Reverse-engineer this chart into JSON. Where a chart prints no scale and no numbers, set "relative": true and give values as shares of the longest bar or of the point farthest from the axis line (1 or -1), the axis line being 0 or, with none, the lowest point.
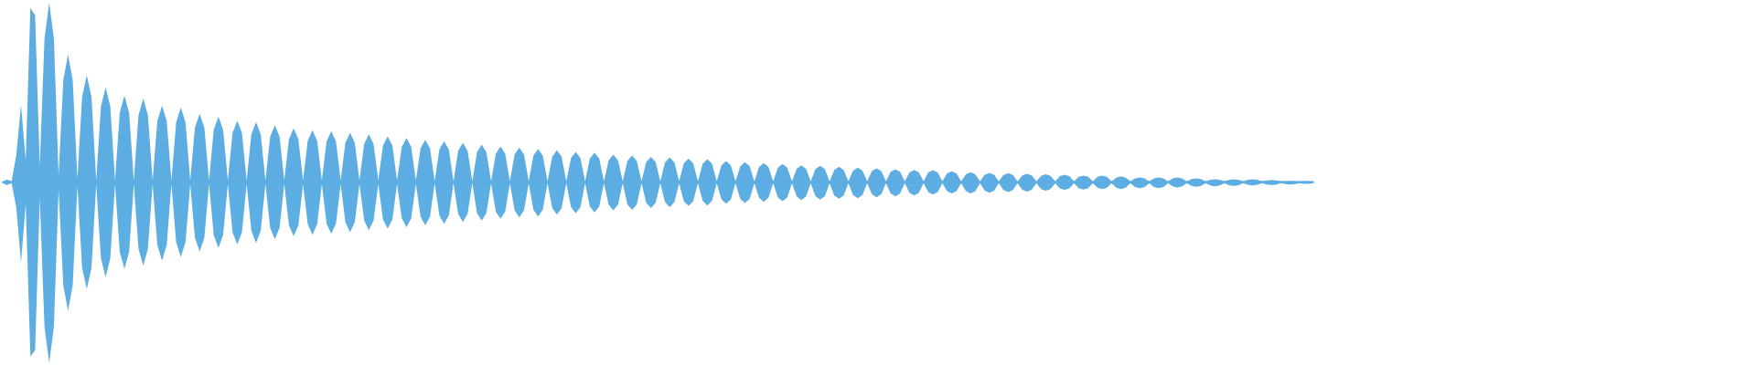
{
  "chart_data": {
    "type": "area",
    "relative": true,
    "categories": [
      null,
      null,
      null,
      null,
      null,
      null,
      null,
      null,
      null,
      null,
      null,
      null,
      null,
      null,
      null,
      null,
      null,
      null,
      null,
      null,
      null,
      null,
      null,
      null,
      null,
      null,
      null,
      null,
      null,
      null,
      null,
      null,
      null,
      null,
      null,
      null,
      null,
      null,
      null,
      null,
      null,
      null,
      null,
      null,
      null,
      null,
      null,
      null,
      null,
      null,
      null,
      null,
      null,
      null,
      null,
      null,
      null,
      null,
      null,
      null,
      null,
      null,
      null,
      null,
      null,
      null,
      null,
      null,
      null,
      null,
      null,
      null,
      null,
      null,
      null,
      null,
      null,
      null,
      null,
      null,
      null,
      null,
      null,
      null,
      null,
      null,
      null,
      null,
      null,
      null,
      null,
      null,
      null,
      null,
      null,
      null,
      null,
      null,
      null,
      null,
      null,
      null,
      null,
      null,
      null,
      null,
      null,
      null,
      null,
      null,
      null,
      null,
      null,
      null,
      null,
      null,
      null,
      null,
      null,
      null,
      null,
      null,
      null,
      null,
      null,
      null,
      null,
      null,
      null,
      null,
      null,
      null,
      null,
      null,
      null,
      null,
      null,
      null,
      null,
      null,
      null,
      null,
      null,
      null,
      null,
      null,
      null,
      null,
      null,
      null,
      null,
      null,
      null,
      null,
      null,
      null,
      null,
      null,
      null,
      null,
      null,
      null,
      null,
      null,
      null,
      null,
      null,
      null,
      null,
      null,
      null,
      null,
      null,
      null,
      null,
      null,
      null,
      null,
      null,
      null,
      null,
      null,
      null,
      null,
      null,
      null,
      null,
      null,
      null,
      null,
      null,
      null,
      null,
      null,
      null,
      null,
      null,
      null,
      null,
      null,
      null,
      null,
      null,
      null,
      null,
      null,
      null,
      null,
      null,
      null,
      null,
      null,
      null,
      null,
      null,
      null,
      null,
      null,
      null,
      null,
      null,
      null,
      null,
      null,
      null,
      null,
      null,
      null,
      null,
      null,
      null,
      null,
      null,
      null,
      null,
      null,
      null,
      null,
      null,
      null,
      null,
      null,
      null,
      null,
      null,
      null,
      null,
      null,
      null,
      null,
      null,
      null,
      null,
      null,
      null,
      null,
      null,
      null,
      null,
      null,
      null,
      null,
      null,
      null,
      null,
      null,
      null,
      null,
      null,
      null,
      null,
      null,
      null,
      null,
      null,
      null,
      null,
      null,
      null,
      null
    ],
    "series": [
      {
        "color": "#5dade2",
        "values": [
          0.003,
          0.015,
          0.005,
          0.15,
          0.429,
          0.12,
          0.965,
          0.924,
          0.09,
          0.796,
          0.995,
          0.796,
          0.04,
          0.566,
          0.707,
          0.566,
          0.02,
          0.473,
          0.591,
          0.473,
          0.01,
          0.42,
          0.525,
          0.42,
          0.01,
          0.384,
          0.48,
          0.384,
          0.01,
          0.372,
          0.465,
          0.372,
          0.01,
          0.339,
          0.424,
          0.339,
          0.01,
          0.331,
          0.414,
          0.331,
          0.01,
          0.303,
          0.379,
          0.303,
          0.01,
          0.291,
          0.364,
          0.291,
          0.01,
          0.273,
          0.341,
          0.273,
          0.01,
          0.266,
          0.333,
          0.266,
          0.01,
          0.253,
          0.316,
          0.253,
          0.01,
          0.239,
          0.299,
          0.239,
          0.01,
          0.23,
          0.288,
          0.23,
          0.01,
          0.226,
          0.283,
          0.226,
          0.01,
          0.219,
          0.274,
          0.219,
          0.01,
          0.213,
          0.266,
          0.213,
          0.01,
          0.203,
          0.254,
          0.203,
          0.01,
          0.196,
          0.245,
          0.196,
          0.01,
          0.188,
          0.235,
          0.188,
          0.005,
          0.182,
          0.227,
          0.182,
          0.005,
          0.175,
          0.219,
          0.175,
          0.005,
          0.167,
          0.209,
          0.167,
          0.005,
          0.158,
          0.198,
          0.158,
          0.005,
          0.154,
          0.192,
          0.154,
          0.005,
          0.148,
          0.185,
          0.148,
          0.005,
          0.142,
          0.178,
          0.142,
          0.005,
          0.134,
          0.168,
          0.134,
          0.005,
          0.132,
          0.165,
          0.132,
          0.005,
          0.122,
          0.153,
          0.122,
          0.005,
          0.118,
          0.148,
          0.118,
          0.005,
          0.113,
          0.141,
          0.113,
          0.005,
          0.11,
          0.138,
          0.11,
          0.005,
          0.105,
          0.131,
          0.105,
          0.005,
          0.102,
          0.128,
          0.102,
          0.005,
          0.094,
          0.118,
          0.094,
          0.005,
          0.089,
          0.111,
          0.089,
          0.005,
          0.085,
          0.106,
          0.085,
          0.005,
          0.081,
          0.101,
          0.081,
          0.005,
          0.075,
          0.094,
          0.075,
          0.005,
          0.073,
          0.091,
          0.073,
          0.005,
          0.069,
          0.086,
          0.069,
          0.005,
          0.065,
          0.081,
          0.065,
          0.005,
          0.062,
          0.077,
          0.062,
          0.005,
          0.058,
          0.072,
          0.058,
          0.005,
          0.055,
          0.069,
          0.055,
          0.005,
          0.054,
          0.067,
          0.054,
          0.005,
          0.049,
          0.061,
          0.049,
          0.005,
          0.045,
          0.056,
          0.045,
          0.005,
          0.042,
          0.052,
          0.042,
          0.005,
          0.041,
          0.051,
          0.041,
          0.005,
          0.038,
          0.047,
          0.038,
          0.005,
          0.036,
          0.045,
          0.036,
          0.005,
          0.034,
          0.042,
          0.034,
          0.005,
          0.03,
          0.037,
          0.03,
          0.005,
          0.03,
          0.037,
          0.03,
          0.005,
          0.026,
          0.033,
          0.026,
          0.005,
          0.022,
          0.027,
          0.022,
          0.005,
          0.022,
          0.027,
          0.022,
          0.005,
          0.022,
          0.027,
          0.022,
          0.005,
          0.018,
          0.022,
          0.018,
          0.005,
          0.014,
          0.017,
          0.014,
          0.005,
          0.014,
          0.017,
          0.014,
          0.005,
          0.014,
          0.017,
          0.014,
          0.005,
          0.01,
          0.013,
          0.01,
          0.005,
          0.006,
          0.008,
          0.006,
          0.005,
          0.007,
          0.006,
          0.003
        ]
      },
      {
        "color": "#5daee3",
        "values": [
          -0.003,
          -0.015,
          -0.005,
          -0.14,
          -0.444,
          -0.12,
          -0.965,
          -0.929,
          -0.09,
          -0.8,
          -1,
          -0.8,
          -0.04,
          -0.57,
          -0.712,
          -0.57,
          -0.02,
          -0.473,
          -0.591,
          -0.473,
          -0.01,
          -0.42,
          -0.525,
          -0.42,
          -0.01,
          -0.384,
          -0.48,
          -0.384,
          -0.01,
          -0.368,
          -0.46,
          -0.368,
          -0.01,
          -0.347,
          -0.434,
          -0.347,
          -0.01,
          -0.331,
          -0.414,
          -0.331,
          -0.01,
          -0.307,
          -0.384,
          -0.307,
          -0.01,
          -0.291,
          -0.364,
          -0.291,
          -0.01,
          -0.276,
          -0.345,
          -0.276,
          -0.01,
          -0.268,
          -0.335,
          -0.268,
          -0.01,
          -0.252,
          -0.315,
          -0.252,
          -0.01,
          -0.238,
          -0.298,
          -0.238,
          -0.01,
          -0.232,
          -0.29,
          -0.232,
          -0.01,
          -0.228,
          -0.285,
          -0.228,
          -0.01,
          -0.221,
          -0.276,
          -0.221,
          -0.01,
          -0.212,
          -0.265,
          -0.212,
          -0.01,
          -0.205,
          -0.256,
          -0.205,
          -0.01,
          -0.199,
          -0.249,
          -0.199,
          -0.01,
          -0.191,
          -0.239,
          -0.191,
          -0.005,
          -0.184,
          -0.23,
          -0.184,
          -0.005,
          -0.175,
          -0.219,
          -0.175,
          -0.005,
          -0.17,
          -0.212,
          -0.17,
          -0.005,
          -0.162,
          -0.202,
          -0.162,
          -0.005,
          -0.155,
          -0.194,
          -0.155,
          -0.005,
          -0.151,
          -0.189,
          -0.151,
          -0.005,
          -0.143,
          -0.179,
          -0.143,
          -0.005,
          -0.138,
          -0.172,
          -0.138,
          -0.005,
          -0.134,
          -0.167,
          -0.134,
          -0.005,
          -0.124,
          -0.155,
          -0.124,
          -0.005,
          -0.122,
          -0.152,
          -0.122,
          -0.005,
          -0.114,
          -0.143,
          -0.114,
          -0.005,
          -0.11,
          -0.138,
          -0.11,
          -0.005,
          -0.105,
          -0.131,
          -0.105,
          -0.005,
          -0.102,
          -0.128,
          -0.102,
          -0.005,
          -0.094,
          -0.118,
          -0.094,
          -0.005,
          -0.092,
          -0.115,
          -0.092,
          -0.005,
          -0.086,
          -0.108,
          -0.086,
          -0.005,
          -0.084,
          -0.105,
          -0.084,
          -0.005,
          -0.078,
          -0.098,
          -0.078,
          -0.005,
          -0.077,
          -0.096,
          -0.077,
          -0.005,
          -0.073,
          -0.091,
          -0.073,
          -0.005,
          -0.07,
          -0.088,
          -0.07,
          -0.005,
          -0.066,
          -0.083,
          -0.066,
          -0.005,
          -0.062,
          -0.078,
          -0.062,
          -0.005,
          -0.058,
          -0.073,
          -0.058,
          -0.005,
          -0.054,
          -0.068,
          -0.054,
          -0.005,
          -0.049,
          -0.061,
          -0.049,
          -0.005,
          -0.049,
          -0.061,
          -0.049,
          -0.005,
          -0.046,
          -0.058,
          -0.046,
          -0.005,
          -0.043,
          -0.054,
          -0.043,
          -0.005,
          -0.041,
          -0.051,
          -0.041,
          -0.005,
          -0.038,
          -0.047,
          -0.038,
          -0.005,
          -0.034,
          -0.042,
          -0.034,
          -0.005,
          -0.032,
          -0.04,
          -0.032,
          -0.005,
          -0.03,
          -0.037,
          -0.03,
          -0.005,
          -0.03,
          -0.037,
          -0.03,
          -0.005,
          -0.026,
          -0.032,
          -0.026,
          -0.005,
          -0.026,
          -0.032,
          -0.026,
          -0.005,
          -0.023,
          -0.029,
          -0.023,
          -0.005,
          -0.02,
          -0.025,
          -0.02,
          -0.005,
          -0.018,
          -0.022,
          -0.018,
          -0.005,
          -0.016,
          -0.02,
          -0.016,
          -0.005,
          -0.014,
          -0.017,
          -0.014,
          -0.005,
          -0.012,
          -0.015,
          -0.012,
          -0.005,
          -0.01,
          -0.012,
          -0.01,
          -0.005,
          -0.009,
          -0.008,
          -0.003
        ]
      }
    ]
  }
}
